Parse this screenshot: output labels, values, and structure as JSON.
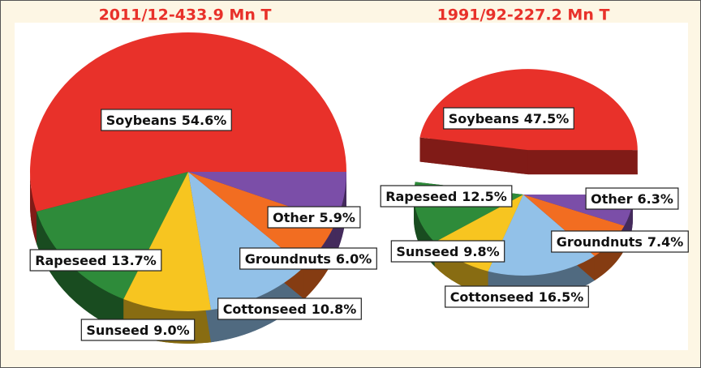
{
  "chart_data": [
    {
      "type": "pie3d",
      "title": "2011/12-433.9 Mn T",
      "categories": [
        "Soybeans",
        "Rapeseed",
        "Sunseed",
        "Cottonseed",
        "Groundnuts",
        "Other"
      ],
      "values": [
        54.6,
        13.7,
        9.0,
        10.8,
        6.0,
        5.9
      ],
      "value_labels": [
        "54.6%",
        "13.7%",
        "9.0%",
        "10.8%",
        "6.0%",
        "5.9%"
      ],
      "colors": [
        "#e8312a",
        "#2e8b3a",
        "#f7c520",
        "#92c1e8",
        "#f26d21",
        "#7b4ea8"
      ]
    },
    {
      "type": "pie3d",
      "title": "1991/92-227.2 Mn T",
      "categories": [
        "Soybeans",
        "Rapeseed",
        "Sunseed",
        "Cottonseed",
        "Groundnuts",
        "Other"
      ],
      "values": [
        47.5,
        12.5,
        9.8,
        16.5,
        7.4,
        6.3
      ],
      "value_labels": [
        "47.5%",
        "12.5%",
        "9.8%",
        "16.5%",
        "7.4%",
        "6.3%"
      ],
      "colors": [
        "#e8312a",
        "#2e8b3a",
        "#f7c520",
        "#92c1e8",
        "#f26d21",
        "#7b4ea8"
      ]
    }
  ]
}
